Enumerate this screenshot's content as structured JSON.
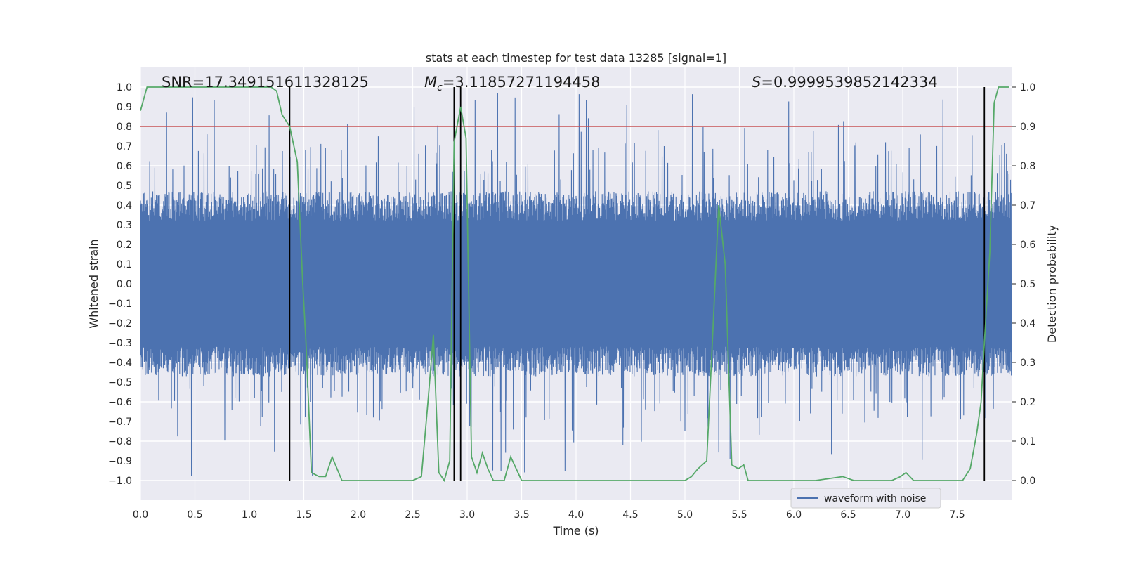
{
  "chart_data": {
    "type": "line",
    "title": "stats at each timestep for test data 13285 [signal=1]",
    "xlabel": "Time (s)",
    "ylabel_left": "Whitened strain",
    "ylabel_right": "Detection probability",
    "xlim": [
      0.0,
      8.0
    ],
    "ylim_left": [
      -1.1,
      1.1
    ],
    "ylim_right": [
      -0.05,
      1.05
    ],
    "x_ticks": [
      "0.0",
      "0.5",
      "1.0",
      "1.5",
      "2.0",
      "2.5",
      "3.0",
      "3.5",
      "4.0",
      "4.5",
      "5.0",
      "5.5",
      "6.0",
      "6.5",
      "7.0",
      "7.5"
    ],
    "y_left_ticks": [
      "1.0",
      "0.9",
      "0.8",
      "0.7",
      "0.6",
      "0.5",
      "0.4",
      "0.3",
      "0.2",
      "0.1",
      "0.0",
      "−0.1",
      "−0.2",
      "−0.3",
      "−0.4",
      "−0.5",
      "−0.6",
      "−0.7",
      "−0.8",
      "−0.9",
      "−1.0"
    ],
    "y_right_ticks": [
      "1.0",
      "0.9",
      "0.8",
      "0.7",
      "0.6",
      "0.5",
      "0.4",
      "0.3",
      "0.2",
      "0.1",
      "0.0"
    ],
    "threshold_right": 0.9,
    "vertical_lines_x": [
      1.37,
      2.88,
      2.94,
      7.75
    ],
    "annotations": {
      "snr_label": "SNR=17.349151611328125",
      "mc_symbol": "M",
      "mc_sub": "c",
      "mc_value": "=3.11857271194458",
      "s_symbol": "S",
      "s_value": "=0.9999539852142334"
    },
    "legend": {
      "label": "waveform with noise",
      "position": "bottom-right"
    },
    "series": [
      {
        "name": "waveform with noise",
        "axis": "left",
        "description": "dense noisy strain, amplitude mostly within ±0.45 with spikes to ±1.0"
      },
      {
        "name": "detection probability",
        "axis": "right",
        "x": [
          0.0,
          0.06,
          0.12,
          0.25,
          0.5,
          0.75,
          1.0,
          1.2,
          1.25,
          1.3,
          1.37,
          1.44,
          1.49,
          1.52,
          1.57,
          1.64,
          1.7,
          1.76,
          1.85,
          1.95,
          2.1,
          2.2,
          2.35,
          2.5,
          2.58,
          2.64,
          2.69,
          2.74,
          2.79,
          2.84,
          2.88,
          2.94,
          2.99,
          3.04,
          3.09,
          3.14,
          3.19,
          3.24,
          3.29,
          3.34,
          3.4,
          3.5,
          3.55,
          3.65,
          3.8,
          4.0,
          4.3,
          4.6,
          4.9,
          5.0,
          5.06,
          5.12,
          5.2,
          5.26,
          5.31,
          5.37,
          5.43,
          5.49,
          5.54,
          5.58,
          5.63,
          5.7,
          5.85,
          6.0,
          6.2,
          6.45,
          6.55,
          6.7,
          6.9,
          6.98,
          7.03,
          7.1,
          7.2,
          7.3,
          7.45,
          7.55,
          7.62,
          7.68,
          7.72,
          7.75,
          7.8,
          7.84,
          7.88,
          7.93,
          7.98
        ],
        "values": [
          0.94,
          1.0,
          1.0,
          1.0,
          1.0,
          1.0,
          1.0,
          1.0,
          0.99,
          0.93,
          0.9,
          0.81,
          0.5,
          0.35,
          0.02,
          0.01,
          0.01,
          0.06,
          0.0,
          0.0,
          0.0,
          0.0,
          0.0,
          0.0,
          0.01,
          0.2,
          0.37,
          0.02,
          0.0,
          0.05,
          0.86,
          0.95,
          0.87,
          0.06,
          0.02,
          0.07,
          0.03,
          0.0,
          0.0,
          0.0,
          0.06,
          0.0,
          0.0,
          0.0,
          0.0,
          0.0,
          0.0,
          0.0,
          0.0,
          0.0,
          0.01,
          0.03,
          0.05,
          0.4,
          0.7,
          0.55,
          0.04,
          0.03,
          0.04,
          0.0,
          0.0,
          0.0,
          0.0,
          0.0,
          0.0,
          0.01,
          0.0,
          0.0,
          0.0,
          0.01,
          0.02,
          0.0,
          0.0,
          0.0,
          0.0,
          0.0,
          0.03,
          0.12,
          0.2,
          0.35,
          0.58,
          0.96,
          1.0,
          1.0,
          1.0
        ]
      }
    ]
  }
}
